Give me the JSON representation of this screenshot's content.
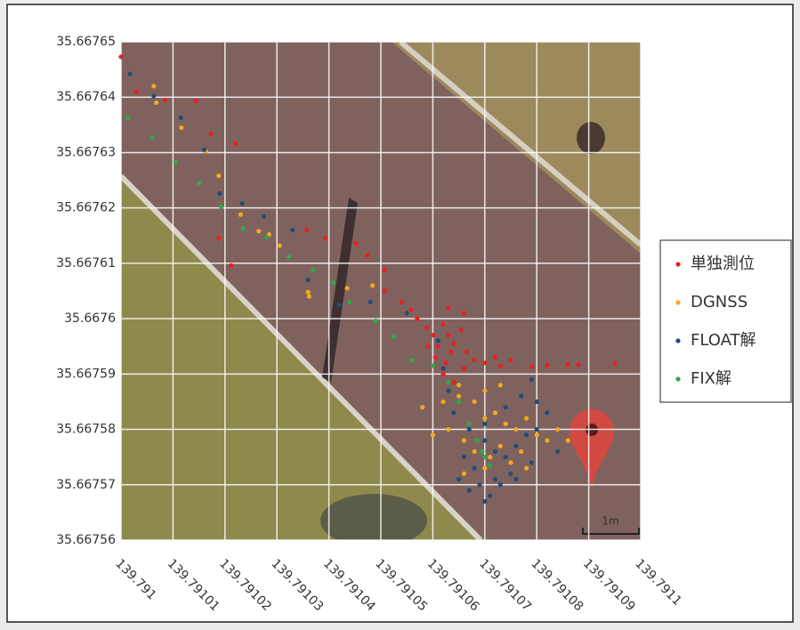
{
  "chart_data": {
    "type": "scatter",
    "xlim": [
      139.791,
      139.7911
    ],
    "ylim": [
      35.66756,
      35.66765
    ],
    "xticks": [
      139.791,
      139.79101,
      139.79102,
      139.79103,
      139.79104,
      139.79105,
      139.79106,
      139.79107,
      139.79108,
      139.79109,
      139.7911
    ],
    "yticks": [
      35.66756,
      35.66757,
      35.66758,
      35.66759,
      35.6676,
      35.66761,
      35.66762,
      35.66763,
      35.66764,
      35.66765
    ],
    "grid": true,
    "legend": "right",
    "scale_bar_label": "1m",
    "series": [
      {
        "name": "単独測位",
        "color": "#e8201e",
        "x": [
          139.791,
          139.791003,
          139.7910085,
          139.7910145,
          139.7910173,
          139.791022,
          139.7910188,
          139.7910212,
          139.7910357,
          139.7910393,
          139.7910452,
          139.7910474,
          139.7910507,
          139.7910507,
          139.791054,
          139.7910558,
          139.791057,
          139.7910588,
          139.791062,
          139.791063,
          139.791061,
          139.7910635,
          139.7910605,
          139.7910625,
          139.791064,
          139.7910655,
          139.7910665,
          139.791062,
          139.791064,
          139.791066,
          139.791068,
          139.79107,
          139.791072,
          139.791073,
          139.791075,
          139.791079,
          139.791082,
          139.791086,
          139.791088,
          139.791095,
          139.79106,
          139.791063,
          139.791066,
          139.791059
        ],
        "values": [
          35.6676473,
          35.667641,
          35.6676395,
          35.6676393,
          35.6676334,
          35.6676316,
          35.6676145,
          35.6676096,
          35.667616,
          35.6676145,
          35.6676136,
          35.6676114,
          35.6676088,
          35.667605,
          35.667603,
          35.6676016,
          35.6676,
          35.6675984,
          35.667599,
          35.667597,
          35.667595,
          35.667594,
          35.667593,
          35.667592,
          35.6675955,
          35.667598,
          35.667594,
          35.66759,
          35.6675885,
          35.667591,
          35.6675925,
          35.667592,
          35.667593,
          35.6675915,
          35.6675925,
          35.6675913,
          35.6675916,
          35.6675917,
          35.6675917,
          35.6675919,
          35.667597,
          35.667602,
          35.667601,
          35.667595
        ]
      },
      {
        "name": "DGNSS",
        "color": "#f5a81c",
        "x": [
          139.7910063,
          139.7910068,
          139.7910116,
          139.7910163,
          139.7910188,
          139.791023,
          139.7910265,
          139.7910285,
          139.7910305,
          139.791036,
          139.7910362,
          139.7910435,
          139.7910484,
          139.791058,
          139.791062,
          139.791065,
          139.791068,
          139.79107,
          139.791072,
          139.791074,
          139.791076,
          139.791078,
          139.79108,
          139.791082,
          139.791066,
          139.791068,
          139.791071,
          139.791073,
          139.791075,
          139.791077,
          139.791063,
          139.79106,
          139.791065,
          139.79107,
          139.791073,
          139.791084,
          139.791086,
          139.791078,
          139.79107,
          139.791066
        ],
        "values": [
          35.667642,
          35.667639,
          35.6676345,
          35.6676302,
          35.6676258,
          35.6676188,
          35.6676158,
          35.6676152,
          35.6676132,
          35.6676048,
          35.667604,
          35.6676055,
          35.667606,
          35.667584,
          35.667585,
          35.667586,
          35.667585,
          35.667582,
          35.667583,
          35.667581,
          35.66758,
          35.667582,
          35.667579,
          35.667578,
          35.667578,
          35.667576,
          35.667575,
          35.667577,
          35.667574,
          35.667576,
          35.66758,
          35.667579,
          35.667588,
          35.667587,
          35.667588,
          35.66758,
          35.667578,
          35.667573,
          35.667573,
          35.667572
        ]
      },
      {
        "name": "FLOAT解",
        "color": "#1f4e79",
        "x": [
          139.7910017,
          139.7910063,
          139.7910115,
          139.791016,
          139.791019,
          139.7910233,
          139.7910275,
          139.791033,
          139.791036,
          139.791042,
          139.791048,
          139.791055,
          139.791061,
          139.791062,
          139.791063,
          139.791064,
          139.791067,
          139.79107,
          139.791072,
          139.791074,
          139.791076,
          139.791078,
          139.79108,
          139.791075,
          139.791072,
          139.791069,
          139.791067,
          139.791071,
          139.791073,
          139.791076,
          139.791079,
          139.791068,
          139.791066,
          139.79107,
          139.791074,
          139.791077,
          139.79108,
          139.791079,
          139.791082,
          139.791084,
          139.79107,
          139.791065
        ],
        "values": [
          35.6676442,
          35.6676402,
          35.6676363,
          35.6676305,
          35.6676226,
          35.6676208,
          35.6676185,
          35.667616,
          35.667607,
          35.6676025,
          35.667603,
          35.667601,
          35.667596,
          35.667591,
          35.667587,
          35.667583,
          35.66758,
          35.667578,
          35.667576,
          35.667575,
          35.667577,
          35.667579,
          35.66758,
          35.667572,
          35.667571,
          35.66757,
          35.667569,
          35.667568,
          35.66757,
          35.667571,
          35.667574,
          35.667573,
          35.667575,
          35.667581,
          35.667584,
          35.667586,
          35.667585,
          35.667589,
          35.667583,
          35.667576,
          35.667567,
          35.667571
        ]
      },
      {
        "name": "FIX解",
        "color": "#2eaa4a",
        "x": [
          139.7910013,
          139.791006,
          139.7910105,
          139.791015,
          139.7910193,
          139.7910235,
          139.791028,
          139.7910323,
          139.791037,
          139.7910408,
          139.791044,
          139.791049,
          139.7910525,
          139.791056,
          139.79106,
          139.791063,
          139.791065,
          139.791067,
          139.7910685,
          139.7910695,
          139.79107,
          139.791071
        ],
        "values": [
          35.6676363,
          35.6676327,
          35.6676282,
          35.6676245,
          35.6676202,
          35.6676163,
          35.6676147,
          35.6676112,
          35.6676088,
          35.6676065,
          35.667603,
          35.6675996,
          35.6675967,
          35.6675925,
          35.6675915,
          35.6675885,
          35.667585,
          35.667581,
          35.667578,
          35.667576,
          35.667575,
          35.6675735
        ]
      }
    ]
  }
}
